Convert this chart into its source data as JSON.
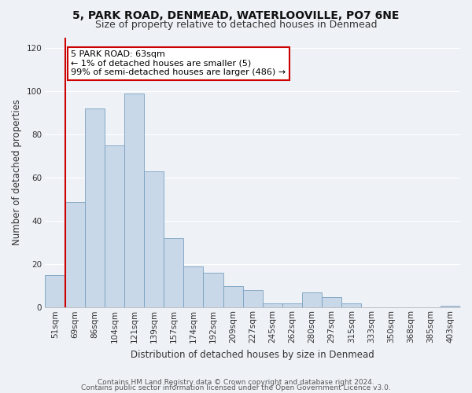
{
  "title1": "5, PARK ROAD, DENMEAD, WATERLOOVILLE, PO7 6NE",
  "title2": "Size of property relative to detached houses in Denmead",
  "xlabel": "Distribution of detached houses by size in Denmead",
  "ylabel": "Number of detached properties",
  "categories": [
    "51sqm",
    "69sqm",
    "86sqm",
    "104sqm",
    "121sqm",
    "139sqm",
    "157sqm",
    "174sqm",
    "192sqm",
    "209sqm",
    "227sqm",
    "245sqm",
    "262sqm",
    "280sqm",
    "297sqm",
    "315sqm",
    "333sqm",
    "350sqm",
    "368sqm",
    "385sqm",
    "403sqm"
  ],
  "values": [
    15,
    49,
    92,
    75,
    99,
    63,
    32,
    19,
    16,
    10,
    8,
    2,
    2,
    7,
    5,
    2,
    0,
    0,
    0,
    0,
    1
  ],
  "bar_color": "#c8d8e8",
  "bar_edge_color": "#7aa0c0",
  "highlight_color": "#cc0000",
  "annotation_line1": "5 PARK ROAD: 63sqm",
  "annotation_line2": "← 1% of detached houses are smaller (5)",
  "annotation_line3": "99% of semi-detached houses are larger (486) →",
  "annotation_box_color": "#ffffff",
  "annotation_box_edge": "#cc0000",
  "ylim": [
    0,
    125
  ],
  "yticks": [
    0,
    20,
    40,
    60,
    80,
    100,
    120
  ],
  "footer1": "Contains HM Land Registry data © Crown copyright and database right 2024.",
  "footer2": "Contains public sector information licensed under the Open Government Licence v3.0.",
  "bg_color": "#eef2f7",
  "grid_color": "#ffffff",
  "title1_fontsize": 10,
  "title2_fontsize": 9,
  "xlabel_fontsize": 8.5,
  "ylabel_fontsize": 8.5,
  "tick_fontsize": 7.5,
  "footer_fontsize": 6.5,
  "annotation_fontsize": 8
}
